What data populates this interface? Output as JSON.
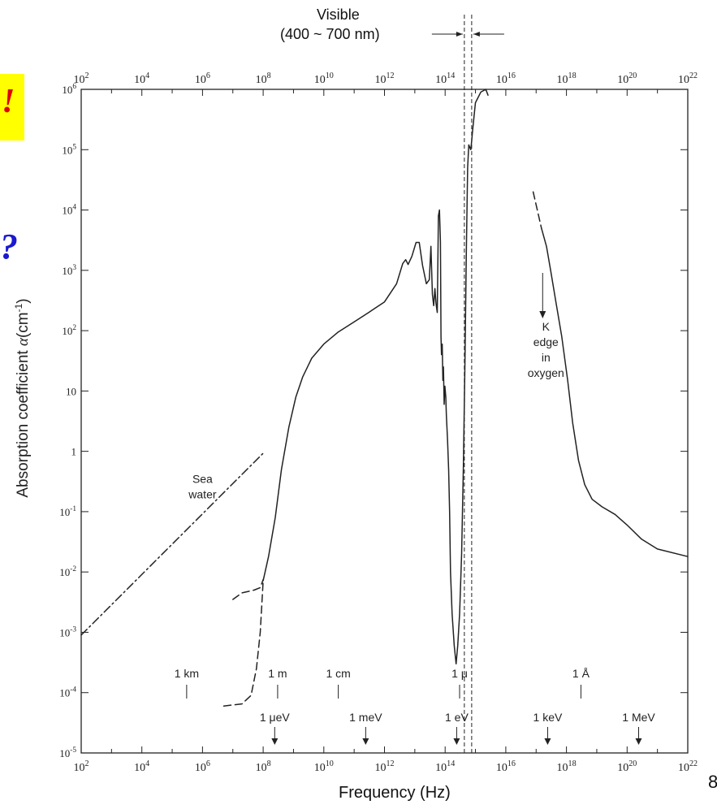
{
  "chart_data": {
    "type": "line",
    "title": "",
    "visible_annotation": {
      "line1": "Visible",
      "line2": "(400 ~ 700 nm)"
    },
    "xlabel": "Frequency (Hz)",
    "ylabel": "Absorption coefficient α (cm⁻¹)",
    "ylabel_parts": {
      "text": "Absorption coefficient ",
      "symbol": "α",
      "unit_open": "(cm",
      "unit_sup": "-1",
      "unit_close": ")"
    },
    "x_scale": "log",
    "y_scale": "log",
    "xlim": [
      100,
      1e+22
    ],
    "ylim": [
      1e-05,
      1000000.0
    ],
    "x_ticks": [
      100.0,
      10000.0,
      1000000.0,
      100000000.0,
      10000000000.0,
      1000000000000.0,
      100000000000000.0,
      1e+16,
      1e+18,
      1e+20,
      1e+22
    ],
    "x_tick_labels": [
      {
        "base": "10",
        "exp": "2"
      },
      {
        "base": "10",
        "exp": "4"
      },
      {
        "base": "10",
        "exp": "6"
      },
      {
        "base": "10",
        "exp": "8"
      },
      {
        "base": "10",
        "exp": "10"
      },
      {
        "base": "10",
        "exp": "12"
      },
      {
        "base": "10",
        "exp": "14"
      },
      {
        "base": "10",
        "exp": "16"
      },
      {
        "base": "10",
        "exp": "18"
      },
      {
        "base": "10",
        "exp": "20"
      },
      {
        "base": "10",
        "exp": "22"
      }
    ],
    "y_ticks": [
      1e-05,
      0.0001,
      0.001,
      0.01,
      0.1,
      1,
      10,
      100.0,
      1000.0,
      10000.0,
      100000.0,
      1000000.0
    ],
    "y_tick_labels": [
      {
        "base": "10",
        "exp": "-5"
      },
      {
        "base": "10",
        "exp": "-4"
      },
      {
        "base": "10",
        "exp": "-3"
      },
      {
        "base": "10",
        "exp": "-2"
      },
      {
        "base": "10",
        "exp": "-1"
      },
      {
        "base": "1",
        "exp": ""
      },
      {
        "base": "10",
        "exp": ""
      },
      {
        "base": "10",
        "exp": "2"
      },
      {
        "base": "10",
        "exp": "3"
      },
      {
        "base": "10",
        "exp": "4"
      },
      {
        "base": "10",
        "exp": "5"
      },
      {
        "base": "10",
        "exp": "6"
      }
    ],
    "grid": false,
    "visible_band": [
      430000000000000.0,
      750000000000000.0
    ],
    "series": [
      {
        "style": "solid",
        "points": [
          [
            100000000.0,
            0.0072
          ],
          [
            150000000.0,
            0.018
          ],
          [
            250000000.0,
            0.08
          ],
          [
            400000000.0,
            0.5
          ],
          [
            700000000.0,
            2.5
          ],
          [
            1200000000.0,
            8
          ],
          [
            2000000000.0,
            17
          ],
          [
            4000000000.0,
            35
          ],
          [
            10000000000.0,
            60
          ],
          [
            30000000000.0,
            95
          ],
          [
            100000000000.0,
            140
          ],
          [
            300000000000.0,
            200
          ],
          [
            1000000000000.0,
            300
          ],
          [
            2500000000000.0,
            600
          ],
          [
            4000000000000.0,
            1300
          ],
          [
            5000000000000.0,
            1500
          ],
          [
            6000000000000.0,
            1250
          ],
          [
            8000000000000.0,
            1700
          ],
          [
            11000000000000.0,
            2900
          ],
          [
            14000000000000.0,
            2900
          ],
          [
            18000000000000.0,
            1200
          ],
          [
            24000000000000.0,
            600
          ],
          [
            30000000000000.0,
            700
          ],
          [
            34000000000000.0,
            2500
          ],
          [
            38000000000000.0,
            400
          ],
          [
            42000000000000.0,
            260
          ],
          [
            46000000000000.0,
            500
          ],
          [
            50000000000000.0,
            280
          ],
          [
            55000000000000.0,
            200
          ],
          [
            60000000000000.0,
            8000
          ],
          [
            65000000000000.0,
            10000
          ],
          [
            70000000000000.0,
            3000
          ],
          [
            73000000000000.0,
            80
          ],
          [
            76000000000000.0,
            40
          ],
          [
            80000000000000.0,
            60
          ],
          [
            84000000000000.0,
            15
          ],
          [
            88000000000000.0,
            25
          ],
          [
            93000000000000.0,
            6
          ],
          [
            98000000000000.0,
            12
          ],
          [
            105000000000000.0,
            8
          ],
          [
            110000000000000.0,
            4
          ],
          [
            120000000000000.0,
            1.5
          ],
          [
            130000000000000.0,
            0.5
          ],
          [
            140000000000000.0,
            0.1
          ],
          [
            150000000000000.0,
            0.01
          ],
          [
            170000000000000.0,
            0.002
          ],
          [
            200000000000000.0,
            0.0006
          ],
          [
            230000000000000.0,
            0.0003
          ],
          [
            260000000000000.0,
            0.0006
          ],
          [
            300000000000000.0,
            0.002
          ],
          [
            350000000000000.0,
            0.02
          ],
          [
            400000000000000.0,
            0.6
          ],
          [
            450000000000000.0,
            30
          ],
          [
            500000000000000.0,
            2000
          ],
          [
            550000000000000.0,
            50000
          ],
          [
            600000000000000.0,
            120000
          ],
          [
            700000000000000.0,
            100000
          ],
          [
            750000000000000.0,
            140000
          ],
          [
            800000000000000.0,
            200000
          ],
          [
            1000000000000000.0,
            600000
          ],
          [
            1500000000000000.0,
            900000
          ],
          [
            2200000000000000.0,
            1000000
          ],
          [
            2600000000000000.0,
            800000
          ]
        ]
      },
      {
        "style": "solid",
        "points": [
          [
            1.5e+17,
            5000
          ],
          [
            2.2e+17,
            2500
          ],
          [
            3e+17,
            1000
          ],
          [
            4.5e+17,
            300
          ],
          [
            7e+17,
            80
          ],
          [
            1.1e+18,
            15
          ],
          [
            1.6e+18,
            3
          ],
          [
            2.5e+18,
            0.7
          ],
          [
            4e+18,
            0.28
          ],
          [
            7e+18,
            0.16
          ],
          [
            1.5e+19,
            0.12
          ],
          [
            4e+19,
            0.09
          ],
          [
            1e+20,
            0.06
          ],
          [
            3e+20,
            0.035
          ],
          [
            1e+21,
            0.024
          ],
          [
            1e+22,
            0.018
          ]
        ]
      },
      {
        "name": "Sea water",
        "style": "dash-dot",
        "points": [
          [
            100.0,
            0.0009
          ],
          [
            100000000.0,
            0.93
          ]
        ]
      },
      {
        "style": "dashed",
        "points": [
          [
            5000000.0,
            6e-05
          ],
          [
            20000000.0,
            6.5e-05
          ],
          [
            40000000.0,
            9e-05
          ],
          [
            60000000.0,
            0.00025
          ],
          [
            80000000.0,
            0.001
          ],
          [
            100000000.0,
            0.0072
          ]
        ]
      },
      {
        "style": "dashed",
        "points": [
          [
            10000000.0,
            0.0035
          ],
          [
            20000000.0,
            0.0045
          ],
          [
            50000000.0,
            0.005
          ],
          [
            80000000.0,
            0.0055
          ],
          [
            100000000.0,
            0.0075
          ]
        ]
      },
      {
        "style": "dashed",
        "points": [
          [
            8e+16,
            20000
          ],
          [
            1.5e+17,
            5000
          ]
        ]
      }
    ],
    "annotations": [
      {
        "id": "sea-water",
        "lines": [
          "Sea",
          "water"
        ],
        "x": 1000000.0,
        "y": 0.3
      },
      {
        "id": "k-edge",
        "lines": [
          "K",
          "edge",
          "in",
          "oxygen"
        ],
        "x": 2.1e+17,
        "y": 100
      }
    ],
    "wavelength_markers": [
      {
        "label": "1 km",
        "x": 300000.0
      },
      {
        "label": "1 m",
        "x": 300000000.0
      },
      {
        "label": "1 cm",
        "x": 30000000000.0
      },
      {
        "label": "1 μ",
        "x": 300000000000000.0
      },
      {
        "label": "1 Å",
        "x": 3e+18
      }
    ],
    "energy_markers": [
      {
        "label": "1 μeV",
        "x": 240000000.0
      },
      {
        "label": "1 meV",
        "x": 240000000000.0
      },
      {
        "label": "1 eV",
        "x": 240000000000000.0
      },
      {
        "label": "1 keV",
        "x": 2.4e+17
      },
      {
        "label": "1 MeV",
        "x": 2.4e+20
      }
    ]
  },
  "slide_marks": {
    "badge_glyph": "!",
    "blue_glyph": "?",
    "page_number_fragment": "8"
  },
  "colors": {
    "ink": "#222222",
    "badge_bg": "#ffff00",
    "badge_text": "#e00000",
    "blue_text": "#1a1ad0"
  }
}
